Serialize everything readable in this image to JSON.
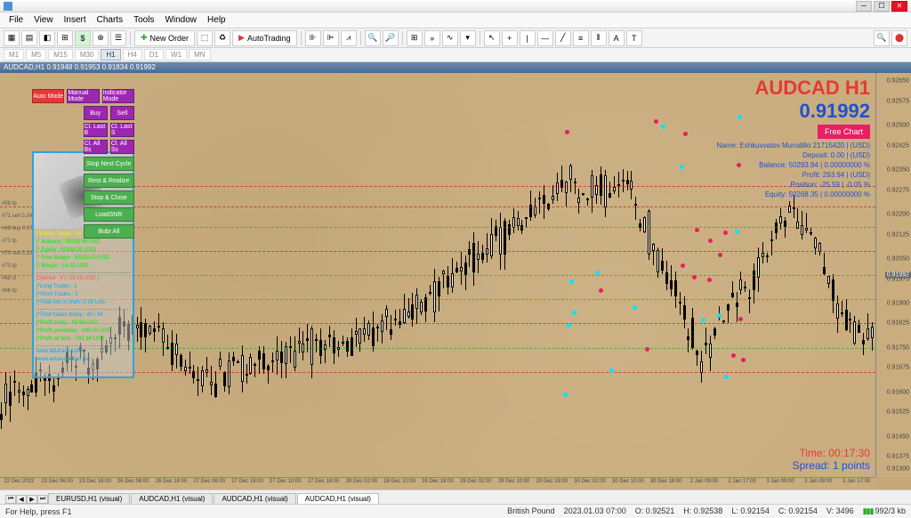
{
  "menu": [
    "File",
    "View",
    "Insert",
    "Charts",
    "Tools",
    "Window",
    "Help"
  ],
  "toolbar": {
    "neworder": "New Order",
    "autotrading": "AutoTrading"
  },
  "timeframes": [
    "M1",
    "M5",
    "M15",
    "M30",
    "H1",
    "H4",
    "D1",
    "W1",
    "MN"
  ],
  "active_tf": "H1",
  "chart_title": "AUDCAD,H1  0.91948 0.91953 0.91834 0.91992",
  "symbol_header": "AUDCAD H1",
  "current_price": "0.91992",
  "free_chart": "Free Chart",
  "account_info": [
    "Name: Eshkuvvatov Murodillo 21715420 | (USD)",
    "Deposit: 0.00 | (USD)",
    "Balance: 50293.94 | 0.00000000 %",
    "Profit: 293.94 | (USD)",
    "Position: -25.59 | -0.05 %",
    "Equity: 50268.35 | 0.00000000 %"
  ],
  "time_label": "Time: 00:17:30",
  "spread_label": "Spread: 1 points",
  "ea_buttons": {
    "auto": "Auto Mode",
    "manual": "Manual Mode",
    "indicator": "Indicator Mode",
    "buy": "Buy",
    "sell": "Sell",
    "cllastb": "Cl. Last B",
    "cllasts": "Cl. Last S",
    "clallbs": "Cl. All Bs",
    "clallss": "Cl. All Ss",
    "stopnext": "Stop Next Cycle",
    "rest": "Rest & Realize",
    "stopclose": "Stop & Close",
    "loadsnr": "LoadSNR",
    "bobrall": "Bobr All"
  },
  "info_panel": {
    "equity": "|*Equity Target     : 68.15  USD",
    "balance": "|* Balance     : 50293.94  USD",
    "equity2": "|* Equity       : 50268.35 USD",
    "margin": "|* Free Margin : 50252.33  USD",
    "margin2": "|* Margin       :     16.02  USD",
    "opened": "Opened    : 4 ( -25.59 USD )",
    "long": "|*Long Trades     : 1",
    "short": "|*Short Trades    : 3",
    "total": "|*Total lots in chart: 0.39 Lots",
    "today": "|*Total trades today     : 40 / 34",
    "ptoday": "|*Profit today               :  48.94  USD",
    "pyest": "|*Profit yesterday         : 245.00  USD",
    "palltime": "|*Profit all time            : 293.94  USD",
    "link1": "www.abutrade.com",
    "link2": "www.advancedban.net"
  },
  "left_labels": [
    "#58 tp",
    "#71 sell 0.24",
    "#69 buy 0.07",
    "#71 tp",
    "#70 sell 0.10",
    "#70 tp",
    "#69 sl",
    "#66 tp"
  ],
  "price_ticks": [
    {
      "v": "0.92650",
      "p": 2
    },
    {
      "v": "0.92575",
      "p": 7
    },
    {
      "v": "0.92500",
      "p": 13
    },
    {
      "v": "0.92425",
      "p": 18
    },
    {
      "v": "0.92350",
      "p": 24
    },
    {
      "v": "0.92275",
      "p": 29
    },
    {
      "v": "0.92200",
      "p": 35
    },
    {
      "v": "0.92125",
      "p": 40
    },
    {
      "v": "0.92050",
      "p": 46
    },
    {
      "v": "0.91975",
      "p": 51
    },
    {
      "v": "0.91900",
      "p": 57
    },
    {
      "v": "0.91825",
      "p": 62
    },
    {
      "v": "0.91750",
      "p": 68
    },
    {
      "v": "0.91675",
      "p": 73
    },
    {
      "v": "0.91600",
      "p": 79
    },
    {
      "v": "0.91525",
      "p": 84
    },
    {
      "v": "0.91450",
      "p": 90
    },
    {
      "v": "0.91375",
      "p": 95
    },
    {
      "v": "0.91300",
      "p": 98
    }
  ],
  "current_tick": {
    "v": "0.91992",
    "p": 50
  },
  "time_ticks": [
    "22 Dec 2022",
    "23 Dec 06:00",
    "23 Dec 18:00",
    "26 Dec 06:00",
    "26 Dec 18:00",
    "27 Dec 06:00",
    "27 Dec 18:00",
    "27 Dec 10:00",
    "27 Dec 18:00",
    "28 Dec 02:00",
    "28 Dec 10:00",
    "28 Dec 18:00",
    "29 Dec 02:00",
    "29 Dec 10:00",
    "29 Dec 18:00",
    "30 Dec 02:00",
    "30 Dec 10:00",
    "30 Dec 18:00",
    "2 Jan 09:00",
    "2 Jan 17:00",
    "3 Jan 09:00",
    "3 Jan 09:00",
    "3 Jan 17:00"
  ],
  "hlines": [
    {
      "p": 28,
      "c": "#c00"
    },
    {
      "p": 33,
      "c": "#c00"
    },
    {
      "p": 38,
      "c": "#0a0"
    },
    {
      "p": 44,
      "c": "#c00"
    },
    {
      "p": 50,
      "c": "#0a0"
    },
    {
      "p": 56,
      "c": "#0a0"
    },
    {
      "p": 62,
      "c": "#c00"
    },
    {
      "p": 68,
      "c": "#0a0"
    },
    {
      "p": 74,
      "c": "#c00"
    }
  ],
  "candles_seed": 42,
  "bottom_tabs": [
    "EURUSD,H1 (visual)",
    "AUDCAD,H1 (visual)",
    "AUDCAD,H1 (visual)",
    "AUDCAD,H1 (visual)"
  ],
  "active_tab": 3,
  "status_help": "For Help, press F1",
  "status_right": {
    "pair": "British Pound",
    "date": "2023.01.03 07:00",
    "o": "O: 0.92521",
    "h": "H: 0.92538",
    "l": "L: 0.92154",
    "c": "C: 0.92154",
    "v": "V: 3496",
    "conn": "992/3 kb"
  }
}
